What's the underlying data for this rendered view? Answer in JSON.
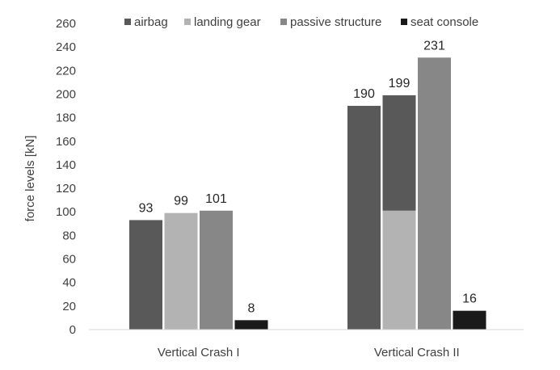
{
  "chart_data": {
    "type": "bar",
    "title": "",
    "xlabel": "",
    "ylabel": "force levels [kN]",
    "ylim": [
      0,
      260
    ],
    "yticks": [
      0,
      20,
      40,
      60,
      80,
      100,
      120,
      140,
      160,
      180,
      200,
      220,
      240,
      260
    ],
    "grid": false,
    "legend_position": "top",
    "categories": [
      "Vertical Crash I",
      "Vertical Crash II"
    ],
    "series": [
      {
        "name": "airbag",
        "values": [
          93,
          190
        ],
        "color": "#595959"
      },
      {
        "name": "landing gear",
        "values": [
          99,
          101
        ],
        "color": "#b3b3b3"
      },
      {
        "name": "passive structure",
        "values": [
          101,
          231
        ],
        "color": "#878787"
      },
      {
        "name": "seat console",
        "values": [
          8,
          16
        ],
        "color": "#1a1a1a"
      }
    ],
    "stacks": [
      {
        "category": "Vertical Crash II",
        "segments": [
          {
            "series": "landing gear",
            "value": 101
          },
          {
            "series": "airbag",
            "value": 98
          }
        ],
        "total": 199
      }
    ],
    "data_labels": [
      [
        "93",
        "99",
        "101",
        "8"
      ],
      [
        "190",
        "199",
        "231",
        "16"
      ]
    ]
  }
}
